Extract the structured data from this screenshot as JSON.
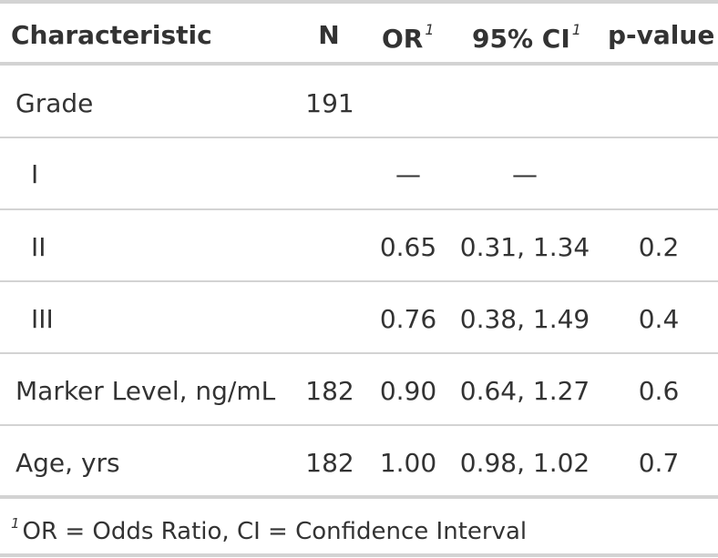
{
  "table": {
    "headers": {
      "characteristic": "Characteristic",
      "n": "N",
      "or": "OR",
      "ci": "95% CI",
      "pvalue": "p-value",
      "footnote_mark": "1"
    },
    "rows": [
      {
        "label": "Grade",
        "n": "191",
        "or": "",
        "ci": "",
        "p": ""
      },
      {
        "label": "I",
        "n": "",
        "or": "—",
        "ci": "—",
        "p": ""
      },
      {
        "label": "II",
        "n": "",
        "or": "0.65",
        "ci": "0.31, 1.34",
        "p": "0.2"
      },
      {
        "label": "III",
        "n": "",
        "or": "0.76",
        "ci": "0.38, 1.49",
        "p": "0.4"
      },
      {
        "label": "Marker Level, ng/mL",
        "n": "182",
        "or": "0.90",
        "ci": "0.64, 1.27",
        "p": "0.6"
      },
      {
        "label": "Age, yrs",
        "n": "182",
        "or": "1.00",
        "ci": "0.98, 1.02",
        "p": "0.7"
      }
    ],
    "footnote": {
      "mark": "1",
      "text": "OR = Odds Ratio, CI = Confidence Interval"
    }
  }
}
